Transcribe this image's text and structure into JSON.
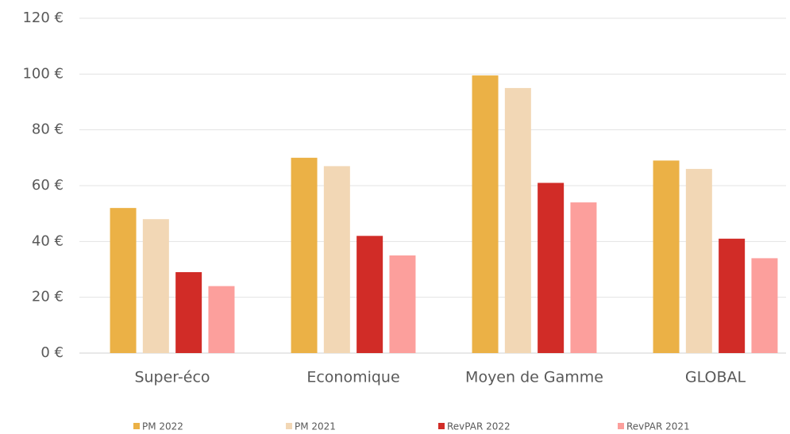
{
  "chart_data": {
    "type": "bar",
    "categories": [
      "Super-éco",
      "Economique",
      "Moyen de Gamme",
      "GLOBAL"
    ],
    "series": [
      {
        "name": "PM 2022",
        "color": "#ebb146",
        "values": [
          52,
          70,
          99.5,
          69
        ]
      },
      {
        "name": "PM 2021",
        "color": "#f2d7b5",
        "values": [
          48,
          67,
          95,
          66
        ]
      },
      {
        "name": "RevPAR 2022",
        "color": "#d12c27",
        "values": [
          29,
          42,
          61,
          41
        ]
      },
      {
        "name": "RevPAR 2021",
        "color": "#fc9f9c",
        "values": [
          24,
          35,
          54,
          34
        ]
      }
    ],
    "ylim": [
      0,
      120
    ],
    "yticks": [
      {
        "value": 0,
        "label": "0 €"
      },
      {
        "value": 20,
        "label": "20 €"
      },
      {
        "value": 40,
        "label": "40 €"
      },
      {
        "value": 60,
        "label": "60 €"
      },
      {
        "value": 80,
        "label": "80 €"
      },
      {
        "value": 100,
        "label": "100 €"
      },
      {
        "value": 120,
        "label": "120 €"
      }
    ],
    "grid": true,
    "legend": "bottom"
  }
}
